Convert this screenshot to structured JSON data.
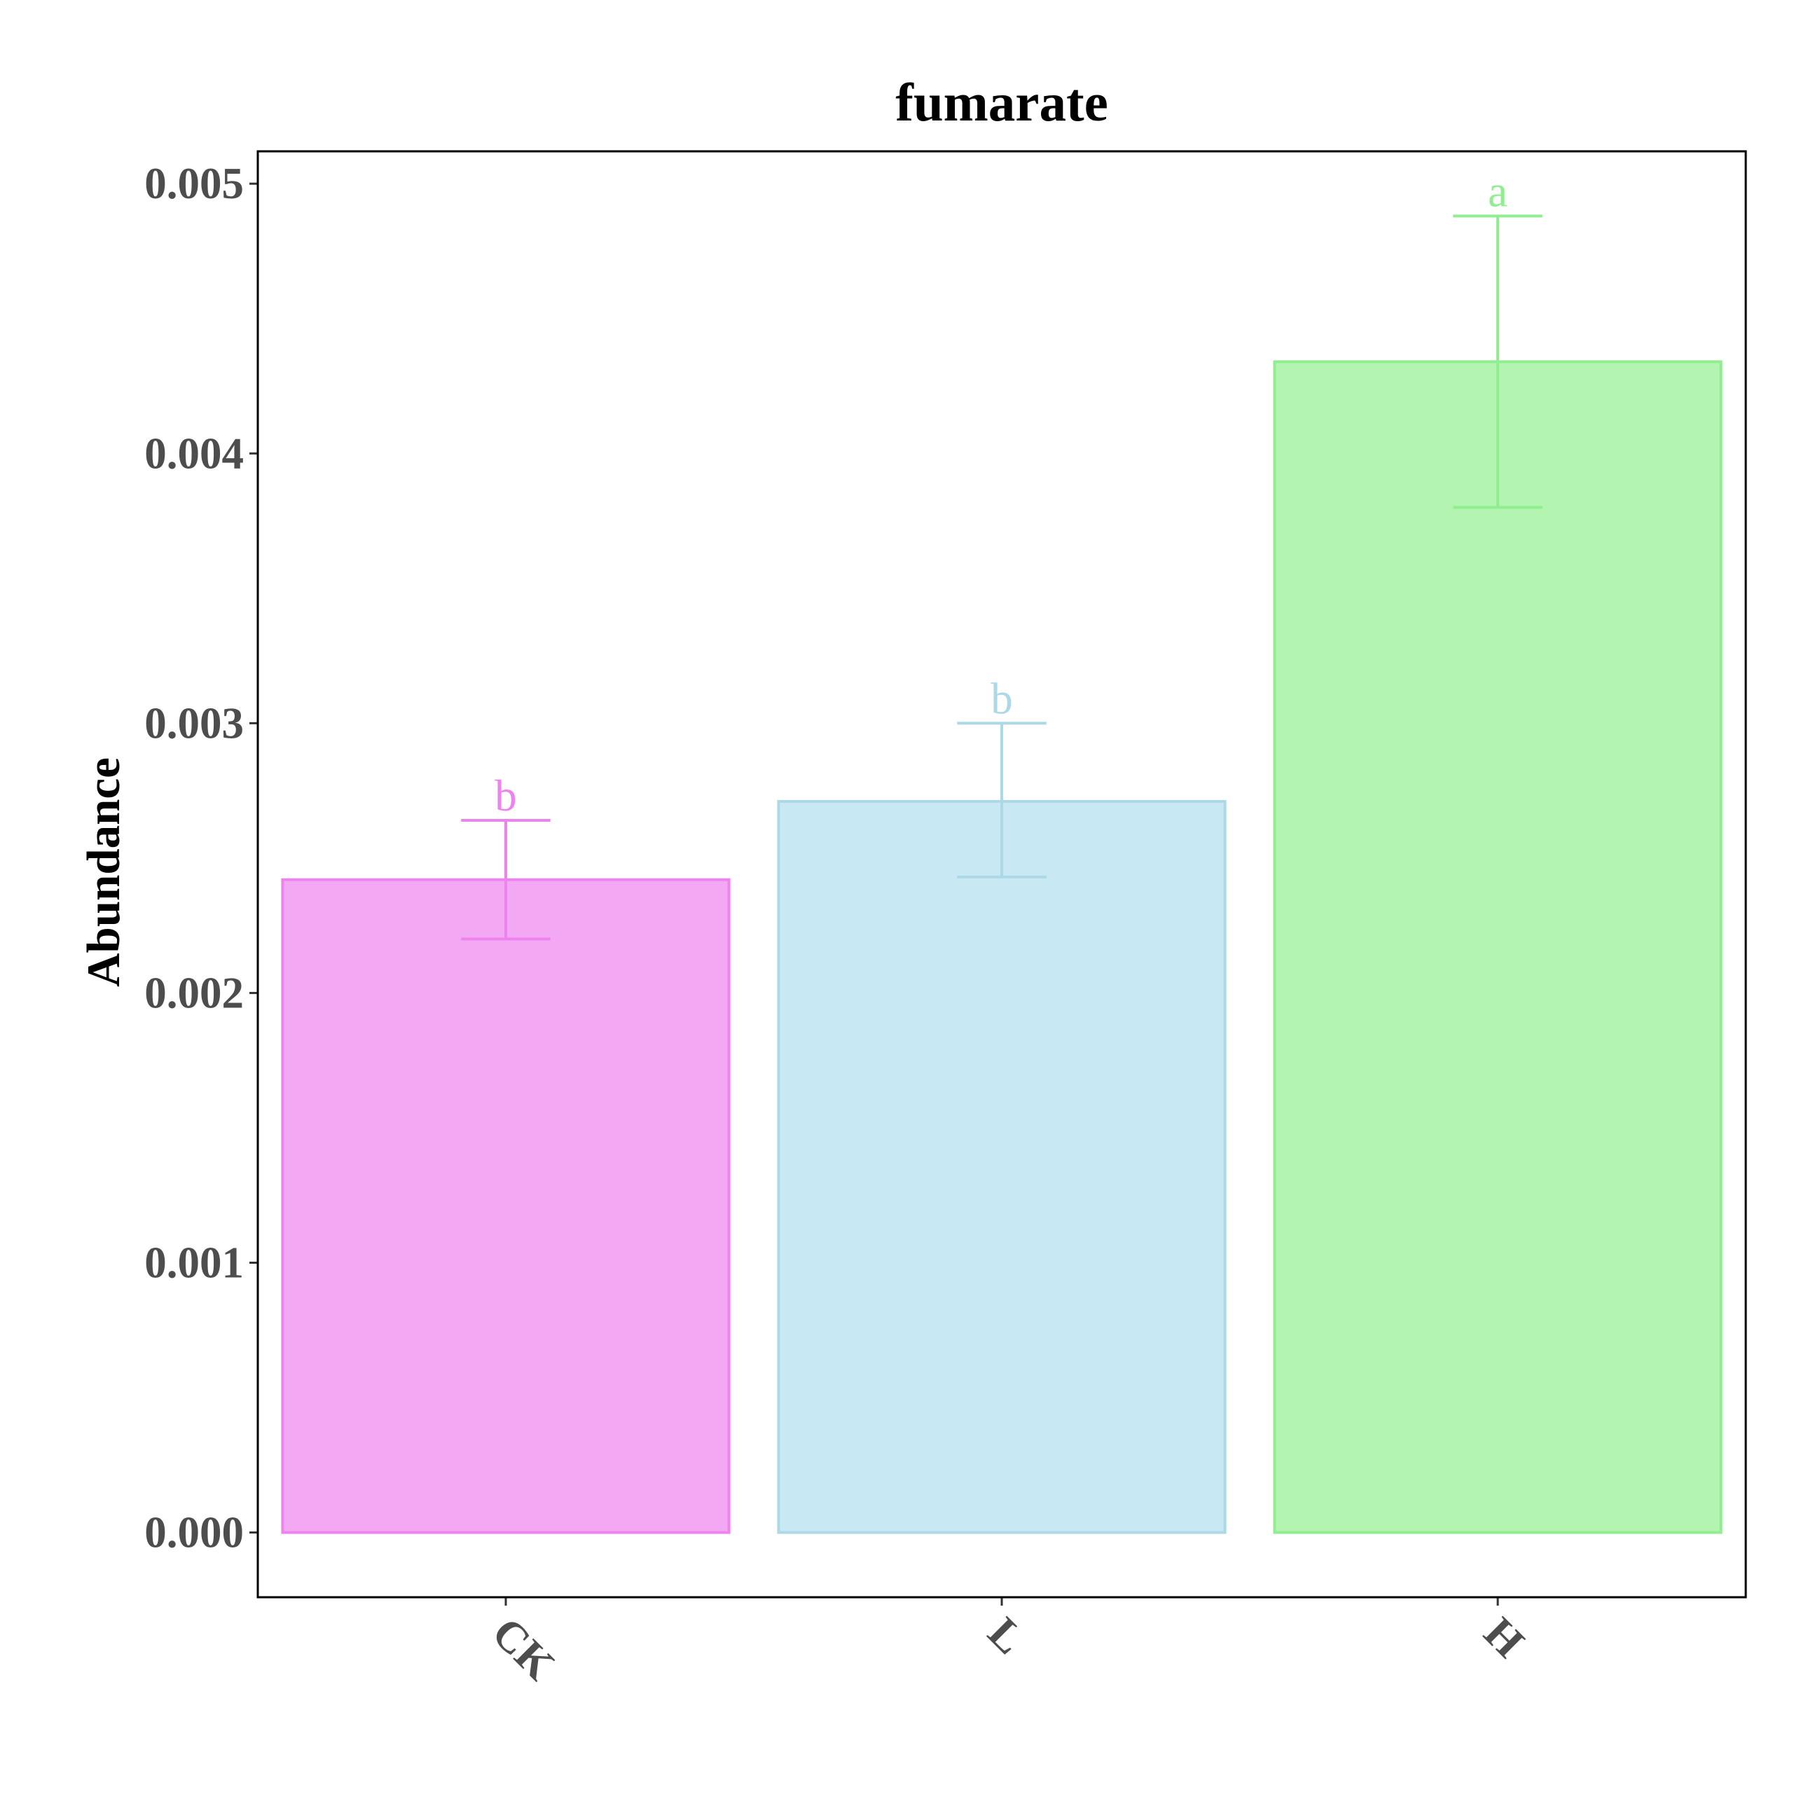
{
  "chart_data": {
    "type": "bar",
    "title": "fumarate",
    "xlabel": "",
    "ylabel": "Abundance",
    "categories": [
      "CK",
      "L",
      "H"
    ],
    "values": [
      0.00242,
      0.00271,
      0.00434
    ],
    "error_low": [
      0.0022,
      0.00243,
      0.0038
    ],
    "error_high": [
      0.00264,
      0.003,
      0.00488
    ],
    "significance": [
      "b",
      "b",
      "a"
    ],
    "ylim": [
      -0.00024,
      0.00512
    ],
    "yticks": [
      0.0,
      0.001,
      0.002,
      0.003,
      0.004,
      0.005
    ],
    "ytick_labels": [
      "0.000",
      "0.001",
      "0.002",
      "0.003",
      "0.004",
      "0.005"
    ],
    "grid": false,
    "legend": "none",
    "colors": {
      "CK": {
        "fill": "#f3a8f3",
        "stroke": "#ee82ee"
      },
      "L": {
        "fill": "#c8e9f3",
        "stroke": "#add8e6"
      },
      "H": {
        "fill": "#b2f4b0",
        "stroke": "#90ee90"
      }
    }
  }
}
